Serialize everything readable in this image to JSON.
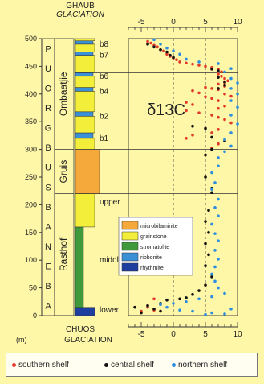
{
  "chart_data": {
    "type": "scatter",
    "title": "δ13C",
    "top_axis_label": [
      "GHAUB",
      "GLACIATION"
    ],
    "bottom_axis_label": [
      "CHUOS",
      "GLACIATION"
    ],
    "y_unit": "(m)",
    "xlim": [
      -7,
      10
    ],
    "ylim": [
      0,
      500
    ],
    "x_ticks": [
      "-5",
      "0",
      "5",
      "10"
    ],
    "y_ticks": [
      "0",
      "50",
      "100",
      "150",
      "200",
      "250",
      "300",
      "350",
      "400",
      "450",
      "500"
    ],
    "group_label": "ABENAB SUBGROUP",
    "group_letters": [
      "A",
      "B",
      "E",
      "N",
      "A",
      "B",
      "S",
      "U",
      "B",
      "G",
      "R",
      "O",
      "U",
      "P"
    ],
    "formations": [
      {
        "name": "Ombaatjie",
        "from": 300,
        "to": 500
      },
      {
        "name": "Gruis",
        "from": 220,
        "to": 300
      },
      {
        "name": "Rasthof",
        "from": 0,
        "to": 220
      }
    ],
    "unit_labels": [
      {
        "text": "b8",
        "y": 490
      },
      {
        "text": "b7",
        "y": 470
      },
      {
        "text": "b6",
        "y": 432
      },
      {
        "text": "b4",
        "y": 405
      },
      {
        "text": "b2",
        "y": 360
      },
      {
        "text": "b1",
        "y": 320
      },
      {
        "text": "upper",
        "y": 205
      },
      {
        "text": "middle",
        "y": 100
      },
      {
        "text": "lower",
        "y": 10
      }
    ],
    "lithology_legend": [
      {
        "name": "microbilaminite",
        "color": "#f4a93a"
      },
      {
        "name": "grainstone",
        "color": "#f2ee3a"
      },
      {
        "name": "stromatolite",
        "color": "#3f9a3c"
      },
      {
        "name": "ribbonite",
        "color": "#3a8fd6"
      },
      {
        "name": "rhythmite",
        "color": "#1f3fa0"
      }
    ],
    "column": [
      {
        "from": 0,
        "to": 15,
        "litho": "rhythmite"
      },
      {
        "from": 15,
        "to": 160,
        "litho": "stromatolite"
      },
      {
        "from": 160,
        "to": 220,
        "litho": "grainstone"
      },
      {
        "from": 220,
        "to": 300,
        "litho": "microbilaminite"
      },
      {
        "from": 300,
        "to": 320,
        "litho": "grainstone"
      },
      {
        "from": 320,
        "to": 330,
        "litho": "ribbonite"
      },
      {
        "from": 330,
        "to": 360,
        "litho": "grainstone"
      },
      {
        "from": 360,
        "to": 368,
        "litho": "ribbonite"
      },
      {
        "from": 368,
        "to": 405,
        "litho": "grainstone"
      },
      {
        "from": 405,
        "to": 412,
        "litho": "ribbonite"
      },
      {
        "from": 412,
        "to": 432,
        "litho": "grainstone"
      },
      {
        "from": 432,
        "to": 440,
        "litho": "ribbonite"
      },
      {
        "from": 440,
        "to": 470,
        "litho": "grainstone"
      },
      {
        "from": 470,
        "to": 476,
        "litho": "ribbonite"
      },
      {
        "from": 476,
        "to": 490,
        "litho": "grainstone"
      },
      {
        "from": 490,
        "to": 496,
        "litho": "ribbonite"
      },
      {
        "from": 496,
        "to": 500,
        "litho": "grainstone"
      }
    ],
    "boundaries": [
      220,
      300,
      438
    ],
    "series": [
      {
        "name": "southern shelf",
        "color": "#e23a2a",
        "points": [
          [
            -4,
            495
          ],
          [
            -3.5,
            492
          ],
          [
            -3,
            488
          ],
          [
            -2.5,
            485
          ],
          [
            -2,
            480
          ],
          [
            -1.5,
            478
          ],
          [
            -1,
            472
          ],
          [
            -0.5,
            468
          ],
          [
            0,
            465
          ],
          [
            0.5,
            462
          ],
          [
            1,
            458
          ],
          [
            2,
            456
          ],
          [
            3,
            454
          ],
          [
            4,
            452
          ],
          [
            5,
            450
          ],
          [
            6,
            448
          ],
          [
            7,
            445
          ],
          [
            7.5,
            440
          ],
          [
            7,
            436
          ],
          [
            7.5,
            432
          ],
          [
            8,
            428
          ],
          [
            8.5,
            424
          ],
          [
            8,
            420
          ],
          [
            7,
            418
          ],
          [
            8,
            414
          ],
          [
            5,
            412
          ],
          [
            6,
            410
          ],
          [
            7,
            408
          ],
          [
            3,
            406
          ],
          [
            4,
            402
          ],
          [
            8,
            400
          ],
          [
            9,
            396
          ],
          [
            5,
            395
          ],
          [
            6,
            392
          ],
          [
            7,
            388
          ],
          [
            2,
            385
          ],
          [
            3,
            381
          ],
          [
            8,
            378
          ],
          [
            7,
            374
          ],
          [
            2,
            370
          ],
          [
            4,
            366
          ],
          [
            6,
            362
          ],
          [
            7,
            358
          ],
          [
            8,
            354
          ],
          [
            9,
            348
          ],
          [
            7,
            336
          ],
          [
            6,
            330
          ],
          [
            3,
            326
          ],
          [
            2,
            320
          ],
          [
            7,
            310
          ],
          [
            6,
            302
          ],
          [
            -3,
            30
          ],
          [
            -2,
            20
          ],
          [
            -4,
            15
          ],
          [
            -5,
            8
          ],
          [
            -3,
            10
          ]
        ]
      },
      {
        "name": "central shelf",
        "color": "#111111",
        "points": [
          [
            -4,
            490
          ],
          [
            -3,
            485
          ],
          [
            -2,
            480
          ],
          [
            -1,
            476
          ],
          [
            -0.5,
            470
          ],
          [
            0,
            466
          ],
          [
            6,
            445
          ],
          [
            7,
            442
          ],
          [
            7,
            430
          ],
          [
            8,
            422
          ],
          [
            8,
            416
          ],
          [
            7,
            410
          ],
          [
            3,
            342
          ],
          [
            5,
            338
          ],
          [
            6,
            322
          ],
          [
            8,
            315
          ],
          [
            6,
            300
          ],
          [
            5,
            290
          ],
          [
            5,
            250
          ],
          [
            6,
            230
          ],
          [
            6,
            222
          ],
          [
            5.5,
            190
          ],
          [
            5,
            170
          ],
          [
            5.5,
            150
          ],
          [
            5,
            130
          ],
          [
            5.5,
            110
          ],
          [
            5,
            90
          ],
          [
            6,
            70
          ],
          [
            5,
            55
          ],
          [
            4,
            45
          ],
          [
            3,
            38
          ],
          [
            2,
            32
          ],
          [
            1,
            30
          ],
          [
            -1,
            28
          ],
          [
            -2,
            22
          ],
          [
            -4,
            18
          ],
          [
            -6,
            15
          ],
          [
            -3,
            12
          ],
          [
            -5,
            5
          ],
          [
            -2,
            8
          ]
        ]
      },
      {
        "name": "northern shelf",
        "color": "#2d8ee0",
        "points": [
          [
            -3,
            498
          ],
          [
            -2,
            490
          ],
          [
            -1,
            483
          ],
          [
            0,
            478
          ],
          [
            1,
            472
          ],
          [
            2,
            463
          ],
          [
            4,
            458
          ],
          [
            7,
            455
          ],
          [
            9,
            446
          ],
          [
            8,
            440
          ],
          [
            9,
            428
          ],
          [
            10,
            420
          ],
          [
            9,
            410
          ],
          [
            10,
            400
          ],
          [
            9,
            388
          ],
          [
            10,
            376
          ],
          [
            9,
            362
          ],
          [
            10,
            346
          ],
          [
            9,
            330
          ],
          [
            8,
            318
          ],
          [
            9,
            306
          ],
          [
            8,
            296
          ],
          [
            7,
            285
          ],
          [
            7,
            270
          ],
          [
            6,
            258
          ],
          [
            6.5,
            240
          ],
          [
            6,
            228
          ],
          [
            7,
            210
          ],
          [
            6.5,
            195
          ],
          [
            7,
            180
          ],
          [
            6,
            165
          ],
          [
            6.5,
            148
          ],
          [
            7,
            135
          ],
          [
            6.5,
            118
          ],
          [
            7,
            102
          ],
          [
            6.5,
            88
          ],
          [
            6,
            75
          ],
          [
            6.5,
            62
          ],
          [
            7,
            50
          ],
          [
            8,
            40
          ],
          [
            6,
            34
          ],
          [
            4,
            30
          ],
          [
            2,
            25
          ],
          [
            0,
            22
          ],
          [
            -2,
            20
          ],
          [
            -1,
            15
          ],
          [
            1,
            10
          ],
          [
            3,
            8
          ],
          [
            6,
            5
          ],
          [
            8,
            3
          ],
          [
            9,
            12
          ],
          [
            5,
            2
          ]
        ]
      }
    ]
  }
}
